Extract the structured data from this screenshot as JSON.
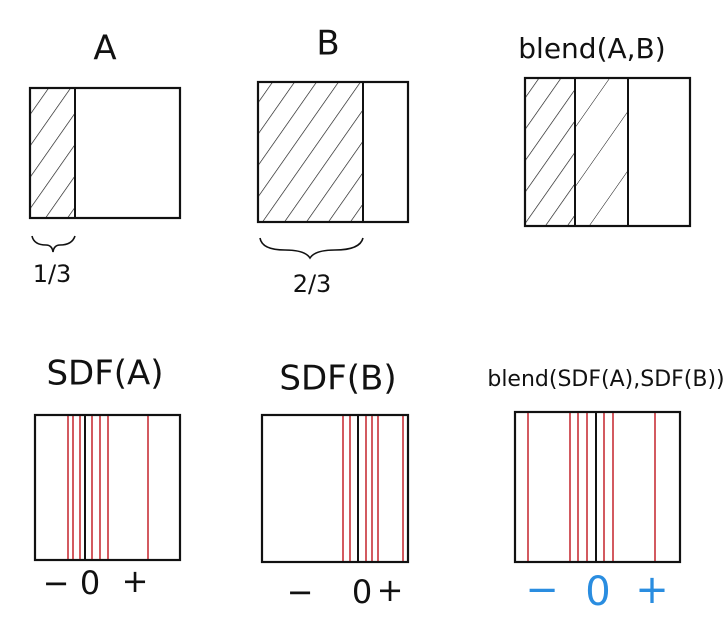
{
  "panels": [
    {
      "title": "A",
      "caption": "1/3"
    },
    {
      "title": "B",
      "caption": "2/3"
    },
    {
      "title": "blend(A,B)"
    },
    {
      "title": "SDF(A)",
      "axis": [
        "−",
        "0",
        "+"
      ]
    },
    {
      "title": "SDF(B)",
      "axis": [
        "−",
        "0",
        "+"
      ]
    },
    {
      "title": "blend(SDF(A),SDF(B))",
      "axis": [
        "−",
        "0",
        "+"
      ]
    }
  ]
}
